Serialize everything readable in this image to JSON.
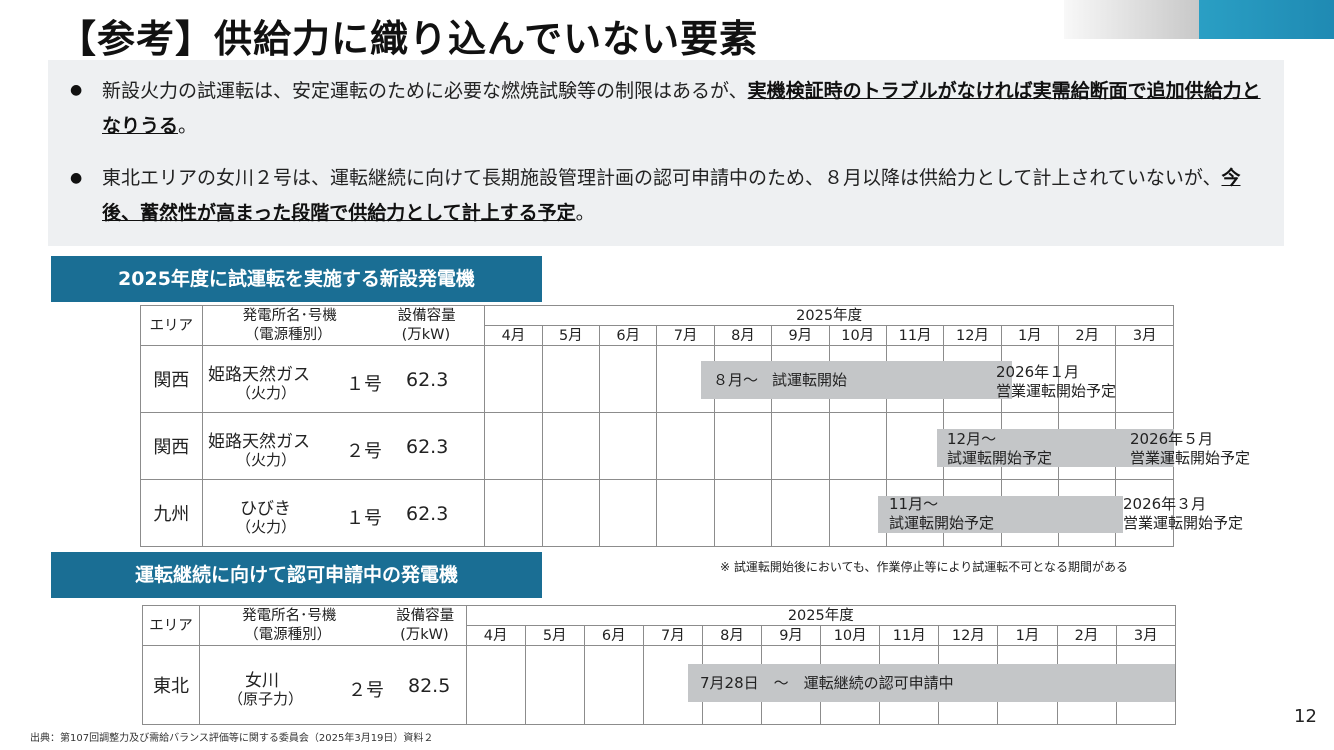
{
  "title": "【参考】供給力に織り込んでいない要素",
  "bullets": [
    {
      "text": "新設火力の試運転は、安定運転のために必要な燃焼試験等の制限はあるが、",
      "emph": "実機検証時のトラブルがなければ実需給断面で追加供給力となりうる",
      "tail": "。"
    },
    {
      "text": "東北エリアの女川２号は、運転継続に向けて長期施設管理計画の認可申請中のため、８月以降は供給力として計上されていないが、",
      "emph": "今後、蓄然性が高まった段階で供給力として計上する予定",
      "tail": "。"
    }
  ],
  "section1": {
    "banner": "2025年度に試運転を実施する新設発電機",
    "header": {
      "area": "エリア",
      "station_line1": "発電所名･号機",
      "station_line2": "（電源種別）",
      "capacity_line1": "設備容量",
      "capacity_line2": "(万kW)",
      "fiscal_year": "2025年度",
      "months": [
        "4月",
        "5月",
        "6月",
        "7月",
        "8月",
        "9月",
        "10月",
        "11月",
        "12月",
        "1月",
        "2月",
        "3月"
      ]
    },
    "rows": [
      {
        "area": "関西",
        "name": "姫路天然ガス",
        "type": "（火力）",
        "unit": "１号",
        "capacity": "62.3",
        "bar_start": "８月～",
        "bar_label": "試運転開始",
        "end_line1": "2026年１月",
        "end_line2": "営業運転開始予定"
      },
      {
        "area": "関西",
        "name": "姫路天然ガス",
        "type": "（火力）",
        "unit": "２号",
        "capacity": "62.3",
        "bar_start": "12月～",
        "bar_label": "試運転開始予定",
        "end_line1": "2026年５月",
        "end_line2": "営業運転開始予定"
      },
      {
        "area": "九州",
        "name": "ひびき",
        "type": "（火力）",
        "unit": "１号",
        "capacity": "62.3",
        "bar_start": "11月～",
        "bar_label": "試運転開始予定",
        "end_line1": "2026年３月",
        "end_line2": "営業運転開始予定"
      }
    ],
    "note": "※ 試運転開始後においても、作業停止等により試運転不可となる期間がある"
  },
  "section2": {
    "banner": "運転継続に向けて認可申請中の発電機",
    "header": {
      "area": "エリア",
      "station_line1": "発電所名･号機",
      "station_line2": "（電源種別）",
      "capacity_line1": "設備容量",
      "capacity_line2": "(万kW)",
      "fiscal_year": "2025年度",
      "months": [
        "4月",
        "5月",
        "6月",
        "7月",
        "8月",
        "9月",
        "10月",
        "11月",
        "12月",
        "1月",
        "2月",
        "3月"
      ]
    },
    "rows": [
      {
        "area": "東北",
        "name": "女川",
        "type": "（原子力）",
        "unit": "２号",
        "capacity": "82.5",
        "bar_label": "7月28日　～　運転継続の認可申請中"
      }
    ]
  },
  "source": "出典：第107回調整力及び需給バランス評価等に関する委員会（2025年3月19日）資料２",
  "page_number": "12"
}
